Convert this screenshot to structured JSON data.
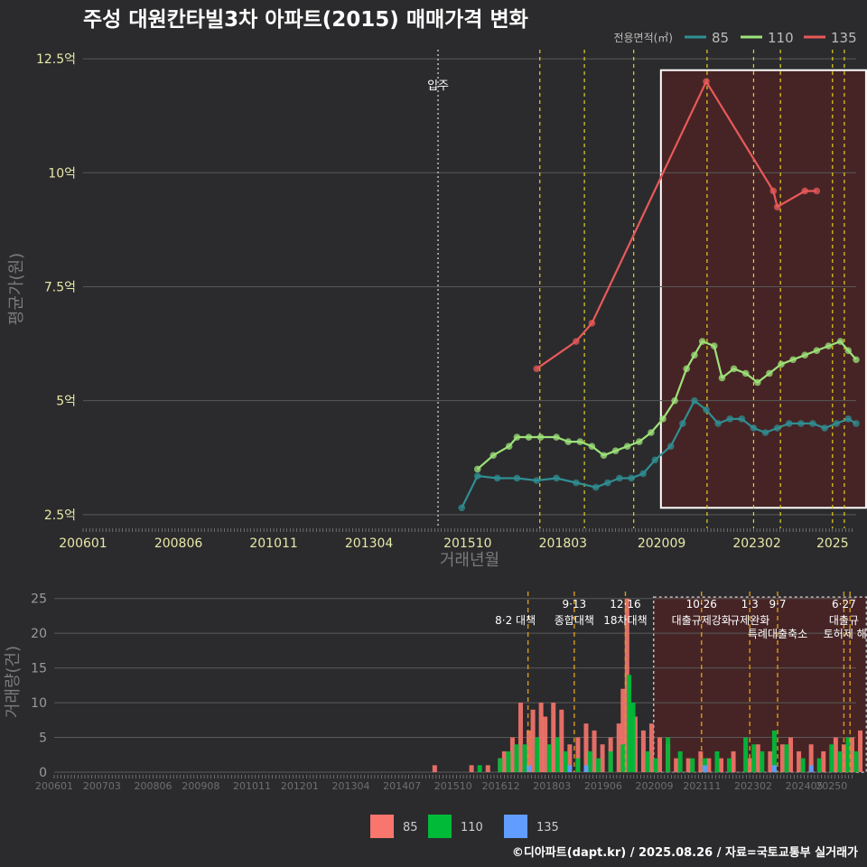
{
  "title": "주성 대원칸타빌3차 아파트(2015) 매매가격 변화",
  "footer": "©디아파트(dapt.kr) / 2025.08.26 / 자료=국토교통부 실거래가",
  "colors": {
    "s85": "#2f8f93",
    "s110": "#9ee37a",
    "s135": "#e8595a",
    "bar85": "#f8766d",
    "bar110": "#00ba38",
    "bar135": "#619cff",
    "policy": "#e6d020",
    "policy_bottom": "#d99a1a",
    "region_fill": "#5c1f1f",
    "grid": "#595959",
    "axis_text": "#e8e8a8"
  },
  "chart_data": [
    {
      "type": "line",
      "title": "주성 대원칸타빌3차 아파트(2015) 매매가격 변화",
      "xlabel": "거래년월",
      "ylabel": "평균가(원)",
      "x_ticks": [
        "200601",
        "200806",
        "201011",
        "201304",
        "201510",
        "201803",
        "202009",
        "202302",
        "2025"
      ],
      "y_ticks": [
        "2.5억",
        "5억",
        "7.5억",
        "10억",
        "12.5억"
      ],
      "ylim": [
        2.2,
        12.7
      ],
      "legend_title": "전용면적(㎡)",
      "legend": [
        "85",
        "110",
        "135"
      ],
      "annotation": "입주",
      "annotation_at": "2015.0",
      "policy_lines": [
        2017.58,
        2018.71,
        2019.96,
        2021.82,
        2023.0,
        2023.68,
        2025.0,
        2025.3
      ],
      "highlight_region": [
        2020.65,
        2025.85
      ],
      "series": [
        {
          "name": "85",
          "points": [
            [
              2015.6,
              2.65
            ],
            [
              2016.0,
              3.35
            ],
            [
              2016.5,
              3.3
            ],
            [
              2017.0,
              3.3
            ],
            [
              2017.5,
              3.25
            ],
            [
              2018.0,
              3.3
            ],
            [
              2018.5,
              3.2
            ],
            [
              2019.0,
              3.1
            ],
            [
              2019.3,
              3.2
            ],
            [
              2019.6,
              3.3
            ],
            [
              2019.9,
              3.3
            ],
            [
              2020.2,
              3.4
            ],
            [
              2020.5,
              3.7
            ],
            [
              2020.9,
              4.0
            ],
            [
              2021.2,
              4.5
            ],
            [
              2021.5,
              5.0
            ],
            [
              2021.8,
              4.8
            ],
            [
              2022.1,
              4.5
            ],
            [
              2022.4,
              4.6
            ],
            [
              2022.7,
              4.6
            ],
            [
              2023.0,
              4.4
            ],
            [
              2023.3,
              4.3
            ],
            [
              2023.6,
              4.4
            ],
            [
              2023.9,
              4.5
            ],
            [
              2024.2,
              4.5
            ],
            [
              2024.5,
              4.5
            ],
            [
              2024.8,
              4.4
            ],
            [
              2025.1,
              4.5
            ],
            [
              2025.4,
              4.6
            ],
            [
              2025.6,
              4.5
            ]
          ]
        },
        {
          "name": "110",
          "points": [
            [
              2016.0,
              3.5
            ],
            [
              2016.4,
              3.8
            ],
            [
              2016.8,
              4.0
            ],
            [
              2017.0,
              4.2
            ],
            [
              2017.3,
              4.2
            ],
            [
              2017.6,
              4.2
            ],
            [
              2018.0,
              4.2
            ],
            [
              2018.3,
              4.1
            ],
            [
              2018.6,
              4.1
            ],
            [
              2018.9,
              4.0
            ],
            [
              2019.2,
              3.8
            ],
            [
              2019.5,
              3.9
            ],
            [
              2019.8,
              4.0
            ],
            [
              2020.1,
              4.1
            ],
            [
              2020.4,
              4.3
            ],
            [
              2020.7,
              4.6
            ],
            [
              2021.0,
              5.0
            ],
            [
              2021.3,
              5.7
            ],
            [
              2021.5,
              6.0
            ],
            [
              2021.7,
              6.3
            ],
            [
              2022.0,
              6.2
            ],
            [
              2022.2,
              5.5
            ],
            [
              2022.5,
              5.7
            ],
            [
              2022.8,
              5.6
            ],
            [
              2023.1,
              5.4
            ],
            [
              2023.4,
              5.6
            ],
            [
              2023.7,
              5.8
            ],
            [
              2024.0,
              5.9
            ],
            [
              2024.3,
              6.0
            ],
            [
              2024.6,
              6.1
            ],
            [
              2024.9,
              6.2
            ],
            [
              2025.2,
              6.3
            ],
            [
              2025.4,
              6.1
            ],
            [
              2025.6,
              5.9
            ]
          ]
        },
        {
          "name": "135",
          "points": [
            [
              2017.5,
              5.7
            ],
            [
              2018.5,
              6.3
            ],
            [
              2018.9,
              6.7
            ],
            [
              2021.8,
              12.0
            ],
            [
              2023.5,
              9.6
            ],
            [
              2023.6,
              9.25
            ],
            [
              2024.3,
              9.6
            ],
            [
              2024.6,
              9.6
            ]
          ]
        }
      ]
    },
    {
      "type": "bar",
      "ylabel": "거래량(건)",
      "x_ticks": [
        "200601",
        "200703",
        "200806",
        "200908",
        "201011",
        "201201",
        "201304",
        "201407",
        "201510",
        "201612",
        "201803",
        "201906",
        "202009",
        "202111",
        "202302",
        "202405",
        "20250"
      ],
      "y_ticks": [
        "0",
        "5",
        "10",
        "15",
        "20",
        "25"
      ],
      "ylim": [
        0,
        26
      ],
      "legend": [
        "85",
        "110",
        "135"
      ],
      "annotations": [
        {
          "at": 2017.58,
          "top": "",
          "bottom": "8·2 대책"
        },
        {
          "at": 2018.71,
          "top": "9·13",
          "bottom": "종합대책"
        },
        {
          "at": 2019.96,
          "top": "12·16",
          "bottom": "18차대책"
        },
        {
          "at": 2021.82,
          "top": "10·26",
          "bottom": "대출규제강화"
        },
        {
          "at": 2023.0,
          "top": "1·3",
          "bottom": "규제완화"
        },
        {
          "at": 2023.68,
          "top": "9·7",
          "bottom": "특례대출축소"
        },
        {
          "at": 2025.3,
          "top": "6·27",
          "bottom": "대출규"
        },
        {
          "at": 2025.45,
          "top": "",
          "bottom": "토허제 해지"
        }
      ],
      "series": [
        {
          "name": "85",
          "values": [
            [
              2015.3,
              1
            ],
            [
              2016.2,
              1
            ],
            [
              2016.6,
              1
            ],
            [
              2016.9,
              2
            ],
            [
              2017.0,
              3
            ],
            [
              2017.2,
              5
            ],
            [
              2017.4,
              10
            ],
            [
              2017.6,
              6
            ],
            [
              2017.7,
              9
            ],
            [
              2017.9,
              10
            ],
            [
              2018.0,
              8
            ],
            [
              2018.2,
              10
            ],
            [
              2018.4,
              9
            ],
            [
              2018.6,
              4
            ],
            [
              2018.8,
              5
            ],
            [
              2019.0,
              7
            ],
            [
              2019.2,
              6
            ],
            [
              2019.4,
              4
            ],
            [
              2019.6,
              5
            ],
            [
              2019.8,
              7
            ],
            [
              2019.9,
              12
            ],
            [
              2020.0,
              25
            ],
            [
              2020.2,
              8
            ],
            [
              2020.4,
              6
            ],
            [
              2020.6,
              7
            ],
            [
              2020.8,
              5
            ],
            [
              2021.0,
              4
            ],
            [
              2021.2,
              2
            ],
            [
              2021.5,
              2
            ],
            [
              2021.8,
              3
            ],
            [
              2022.0,
              2
            ],
            [
              2022.3,
              2
            ],
            [
              2022.6,
              3
            ],
            [
              2023.0,
              2
            ],
            [
              2023.2,
              4
            ],
            [
              2023.5,
              3
            ],
            [
              2023.8,
              4
            ],
            [
              2024.0,
              5
            ],
            [
              2024.2,
              3
            ],
            [
              2024.5,
              4
            ],
            [
              2024.8,
              3
            ],
            [
              2025.1,
              5
            ],
            [
              2025.3,
              4
            ],
            [
              2025.5,
              5
            ],
            [
              2025.7,
              6
            ]
          ]
        },
        {
          "name": "110",
          "values": [
            [
              2016.4,
              1
            ],
            [
              2016.9,
              2
            ],
            [
              2017.1,
              3
            ],
            [
              2017.3,
              4
            ],
            [
              2017.5,
              4
            ],
            [
              2017.8,
              5
            ],
            [
              2018.1,
              4
            ],
            [
              2018.3,
              5
            ],
            [
              2018.5,
              3
            ],
            [
              2018.8,
              2
            ],
            [
              2019.1,
              3
            ],
            [
              2019.3,
              2
            ],
            [
              2019.6,
              3
            ],
            [
              2019.9,
              4
            ],
            [
              2020.05,
              14
            ],
            [
              2020.15,
              10
            ],
            [
              2020.5,
              3
            ],
            [
              2020.7,
              2
            ],
            [
              2021.0,
              5
            ],
            [
              2021.3,
              3
            ],
            [
              2021.6,
              2
            ],
            [
              2021.9,
              2
            ],
            [
              2022.2,
              3
            ],
            [
              2022.5,
              2
            ],
            [
              2022.9,
              5
            ],
            [
              2023.1,
              4
            ],
            [
              2023.3,
              3
            ],
            [
              2023.6,
              6
            ],
            [
              2023.9,
              4
            ],
            [
              2024.3,
              2
            ],
            [
              2024.7,
              2
            ],
            [
              2025.0,
              4
            ],
            [
              2025.2,
              3
            ],
            [
              2025.4,
              5
            ],
            [
              2025.6,
              3
            ]
          ]
        },
        {
          "name": "135",
          "values": [
            [
              2017.6,
              1
            ],
            [
              2018.6,
              1
            ],
            [
              2019.0,
              1
            ],
            [
              2021.9,
              1
            ],
            [
              2023.6,
              1
            ],
            [
              2024.5,
              1
            ]
          ]
        }
      ]
    }
  ]
}
